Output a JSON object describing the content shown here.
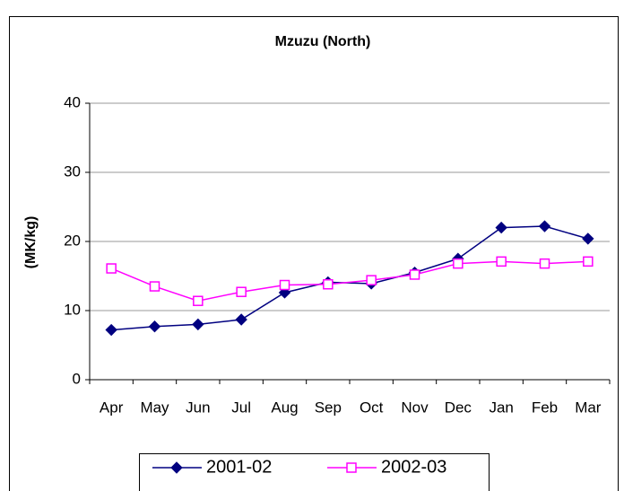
{
  "chart_data": {
    "type": "line",
    "title": "Mzuzu (North)",
    "y_label": "(MK/kg)",
    "categories": [
      "Apr",
      "May",
      "Jun",
      "Jul",
      "Aug",
      "Sep",
      "Oct",
      "Nov",
      "Dec",
      "Jan",
      "Feb",
      "Mar"
    ],
    "series": [
      {
        "name": "2001-02",
        "color": "#000080",
        "marker": "diamond",
        "values": [
          7.2,
          7.7,
          8.0,
          8.7,
          12.6,
          14.1,
          13.9,
          15.5,
          17.5,
          22.0,
          22.2,
          20.4
        ]
      },
      {
        "name": "2002-03",
        "color": "#ff00ff",
        "marker": "square",
        "values": [
          16.1,
          13.5,
          11.4,
          12.7,
          13.7,
          13.8,
          14.4,
          15.2,
          16.8,
          17.1,
          16.8,
          17.1
        ]
      }
    ],
    "ylim": [
      0,
      40
    ],
    "yticks": [
      0,
      10,
      20,
      30,
      40
    ],
    "grid": true,
    "legend": "bottom"
  }
}
